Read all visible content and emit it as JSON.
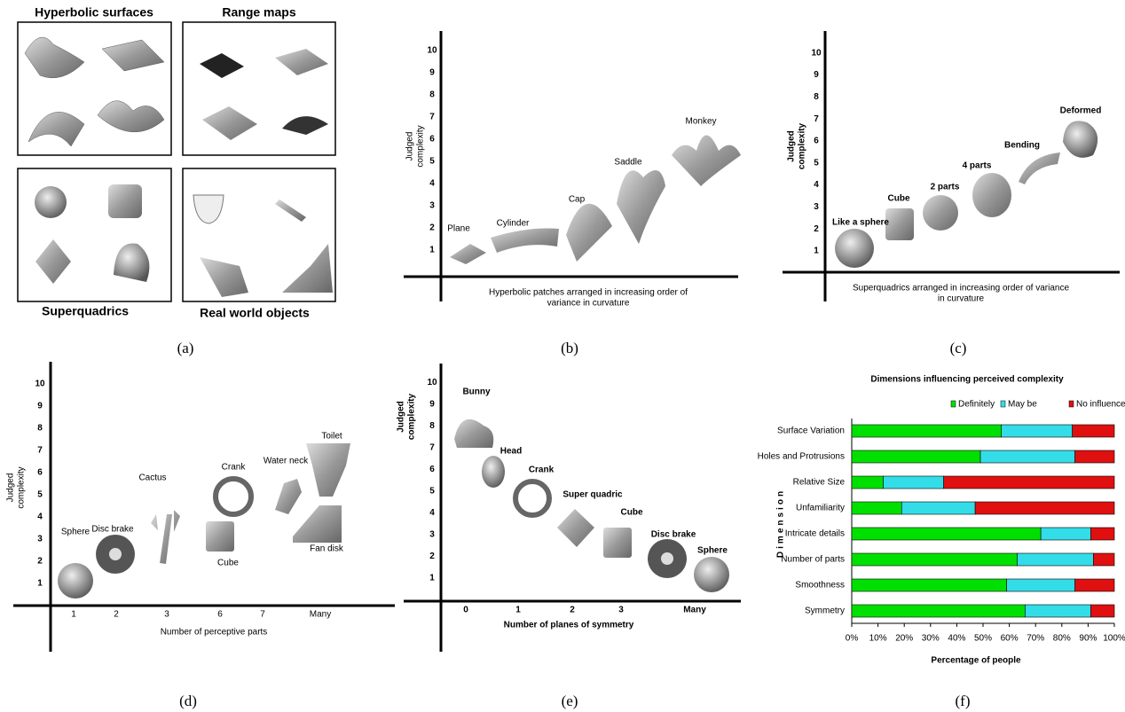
{
  "panel_a": {
    "titles": [
      "Hyperbolic surfaces",
      "Range maps",
      "Superquadrics",
      "Real world objects"
    ],
    "caption": "(a)"
  },
  "panel_b": {
    "y_label": [
      "Judged",
      "complexity"
    ],
    "yticks": [
      1,
      2,
      3,
      4,
      5,
      6,
      7,
      8,
      9,
      10
    ],
    "x_label": [
      "Hyperbolic patches arranged in increasing order of",
      "variance in curvature"
    ],
    "items": [
      "Plane",
      "Cylinder",
      "Cap",
      "Saddle",
      "Monkey"
    ],
    "caption": "(b)"
  },
  "panel_c": {
    "y_label": [
      "Judged",
      "complexity"
    ],
    "yticks": [
      1,
      2,
      3,
      4,
      5,
      6,
      7,
      8,
      9,
      10
    ],
    "x_label": [
      "Superquadrics arranged in increasing order of variance",
      "in curvature"
    ],
    "items": [
      "Like a sphere",
      "Cube",
      "2 parts",
      "4 parts",
      "Bending",
      "Deformed"
    ],
    "caption": "(c)"
  },
  "panel_d": {
    "y_label": [
      "Judged",
      "complexity"
    ],
    "yticks": [
      1,
      2,
      3,
      4,
      5,
      6,
      7,
      8,
      9,
      10
    ],
    "x_categories": [
      "1",
      "2",
      "3",
      "6",
      "7",
      "Many"
    ],
    "x_label": "Number of perceptive parts",
    "items": [
      "Sphere",
      "Disc brake",
      "Cactus",
      "Cube",
      "Crank",
      "Water neck",
      "Toilet",
      "Fan disk"
    ],
    "caption": "(d)"
  },
  "panel_e": {
    "y_label": [
      "Judged",
      "complexity"
    ],
    "yticks": [
      1,
      2,
      3,
      4,
      5,
      6,
      7,
      8,
      9,
      10
    ],
    "x_categories": [
      "0",
      "1",
      "2",
      "3",
      "Many"
    ],
    "x_label": "Number of planes of symmetry",
    "items": [
      "Bunny",
      "Head",
      "Crank",
      "Super quadric",
      "Cube",
      "Disc brake",
      "Sphere"
    ],
    "caption": "(e)"
  },
  "chart_data": {
    "type": "bar",
    "orientation": "horizontal",
    "stacked": true,
    "title": "Dimensions influencing perceived complexity",
    "categories": [
      "Surface Variation",
      "Holes and Protrusions",
      "Relative Size",
      "Unfamiliarity",
      "Intricate details",
      "Number of parts",
      "Smoothness",
      "Symmetry"
    ],
    "series": [
      {
        "name": "Definitely",
        "color": "#00e000",
        "values": [
          57,
          49,
          12,
          19,
          72,
          63,
          59,
          66
        ]
      },
      {
        "name": "May be",
        "color": "#33dde8",
        "values": [
          27,
          36,
          23,
          28,
          19,
          29,
          26,
          25
        ]
      },
      {
        "name": "No influence",
        "color": "#e01010",
        "values": [
          16,
          15,
          65,
          53,
          9,
          8,
          15,
          9
        ]
      }
    ],
    "xlim": [
      0,
      100
    ],
    "xticks": [
      {
        "value": 0,
        "label": "0%"
      },
      {
        "value": 10,
        "label": "10%"
      },
      {
        "value": 20,
        "label": "20%"
      },
      {
        "value": 30,
        "label": "30%"
      },
      {
        "value": 40,
        "label": "40%"
      },
      {
        "value": 50,
        "label": "50%"
      },
      {
        "value": 60,
        "label": "60%"
      },
      {
        "value": 70,
        "label": "70%"
      },
      {
        "value": 80,
        "label": "80%"
      },
      {
        "value": 90,
        "label": "90%"
      },
      {
        "value": 100,
        "label": "100%"
      }
    ],
    "x_label": "Percentage of people",
    "y_label": "Dimension",
    "legend": "top",
    "caption": "(f)"
  }
}
